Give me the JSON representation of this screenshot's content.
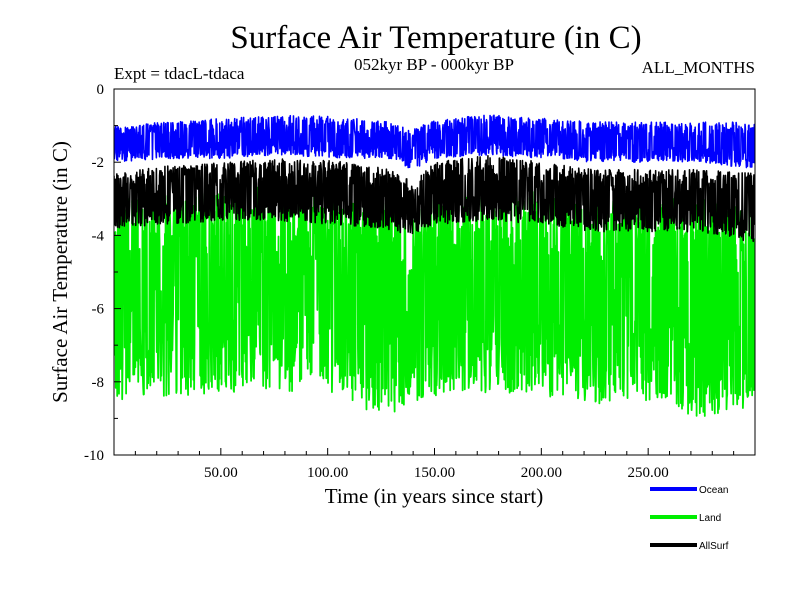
{
  "chart_data": {
    "type": "line",
    "title": "Surface Air Temperature (in C)",
    "subtitle": "052kyr BP - 000kyr BP",
    "experiment_label": "Expt = tdacL-tdaca",
    "months_label": "ALL_MONTHS",
    "xlabel": "Time (in years since start)",
    "ylabel": "Surface Air Temperature (in C)",
    "xlim": [
      0,
      300
    ],
    "ylim": [
      -10,
      0
    ],
    "x_ticks": [
      50,
      100,
      150,
      200,
      250
    ],
    "x_tick_labels": [
      "50.00",
      "100.00",
      "150.00",
      "200.00",
      "250.00"
    ],
    "y_ticks": [
      0,
      -2,
      -4,
      -6,
      -8,
      -10
    ],
    "y_tick_labels": [
      "0",
      "-2",
      "-4",
      "-6",
      "-8",
      "-10"
    ],
    "grid": false,
    "legend_position": "bottom-right",
    "series": [
      {
        "name": "Ocean",
        "color": "#0000ff",
        "x": [
          0,
          25,
          50,
          75,
          100,
          125,
          140,
          150,
          175,
          200,
          225,
          250,
          275,
          300
        ],
        "values_mean": [
          -1.5,
          -1.4,
          -1.35,
          -1.3,
          -1.35,
          -1.45,
          -1.6,
          -1.4,
          -1.3,
          -1.4,
          -1.45,
          -1.5,
          -1.5,
          -1.6
        ],
        "values_min": [
          -2.0,
          -1.9,
          -1.9,
          -1.8,
          -1.9,
          -1.9,
          -2.2,
          -1.9,
          -1.8,
          -1.9,
          -2.0,
          -2.0,
          -2.0,
          -2.2
        ],
        "values_max": [
          -1.0,
          -0.9,
          -0.8,
          -0.7,
          -0.75,
          -0.85,
          -1.1,
          -0.85,
          -0.7,
          -0.8,
          -0.9,
          -0.9,
          -0.9,
          -0.9
        ]
      },
      {
        "name": "Land",
        "color": "#00ee00",
        "x": [
          0,
          25,
          50,
          75,
          100,
          125,
          140,
          150,
          175,
          200,
          225,
          250,
          275,
          300
        ],
        "values_mean": [
          -5.7,
          -5.6,
          -5.5,
          -5.5,
          -5.6,
          -5.7,
          -5.9,
          -5.6,
          -5.5,
          -5.6,
          -5.7,
          -5.7,
          -5.8,
          -5.9
        ],
        "values_min": [
          -8.5,
          -8.4,
          -8.3,
          -8.2,
          -8.4,
          -8.9,
          -8.7,
          -8.4,
          -8.3,
          -8.4,
          -8.6,
          -8.5,
          -9.0,
          -8.7
        ],
        "values_max": [
          -3.0,
          -2.9,
          -2.8,
          -2.6,
          -2.7,
          -2.9,
          -3.3,
          -2.9,
          -2.6,
          -2.8,
          -3.0,
          -3.0,
          -3.0,
          -3.3
        ]
      },
      {
        "name": "AllSurf",
        "color": "#000000",
        "x": [
          0,
          25,
          50,
          75,
          100,
          125,
          140,
          150,
          175,
          200,
          225,
          250,
          275,
          300
        ],
        "values_mean": [
          -3.0,
          -2.9,
          -2.85,
          -2.8,
          -2.85,
          -2.95,
          -3.2,
          -2.9,
          -2.8,
          -2.9,
          -3.0,
          -3.0,
          -3.05,
          -3.2
        ],
        "values_min": [
          -3.8,
          -3.7,
          -3.6,
          -3.6,
          -3.7,
          -3.8,
          -4.0,
          -3.7,
          -3.6,
          -3.7,
          -3.9,
          -3.9,
          -3.9,
          -4.2
        ],
        "values_max": [
          -2.3,
          -2.1,
          -2.0,
          -1.9,
          -1.95,
          -2.1,
          -2.5,
          -2.0,
          -1.8,
          -2.0,
          -2.2,
          -2.2,
          -2.2,
          -2.3
        ]
      }
    ]
  }
}
